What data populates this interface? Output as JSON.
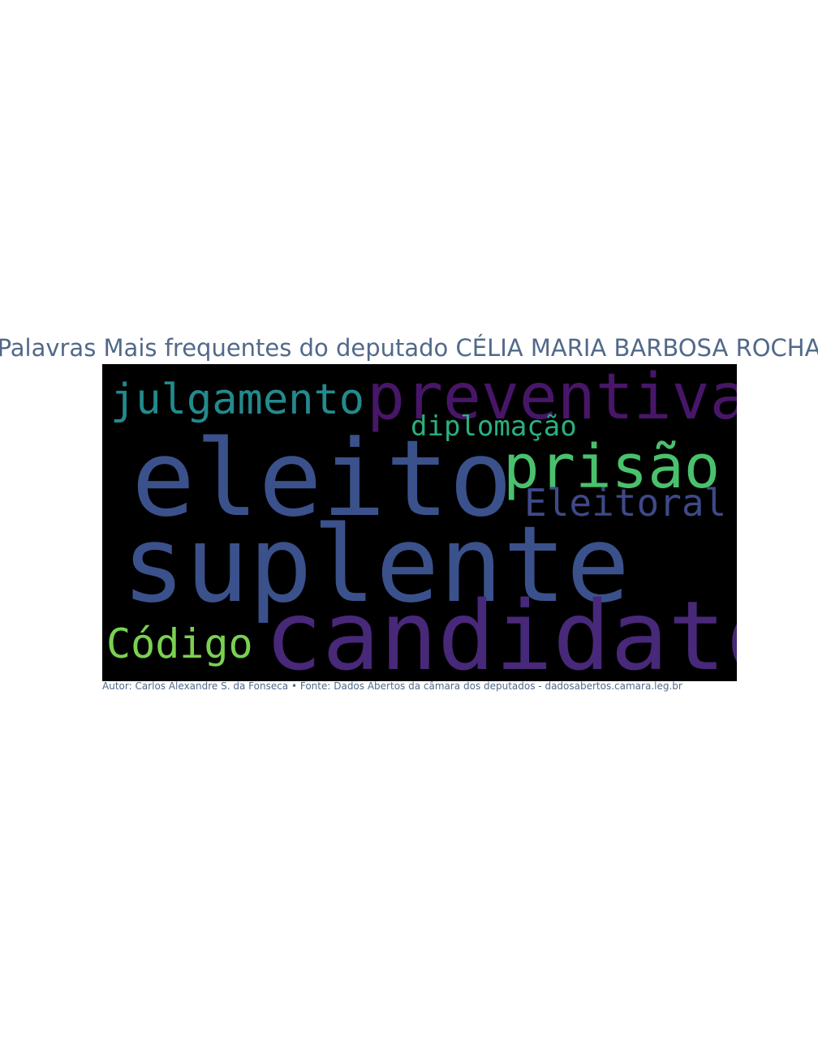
{
  "title": "Palavras Mais frequentes do deputado CÉLIA MARIA BARBOSA ROCHA",
  "cloud": {
    "background": "#000000",
    "words": [
      {
        "key": "suplente",
        "text": "suplente",
        "color": "#3b518b"
      },
      {
        "key": "candidato",
        "text": "candidato",
        "color": "#482878"
      },
      {
        "key": "eleito",
        "text": "eleito",
        "color": "#3b518b"
      },
      {
        "key": "preventiva",
        "text": "preventiva",
        "color": "#481668"
      },
      {
        "key": "prisao",
        "text": "prisão",
        "color": "#4ac16d"
      },
      {
        "key": "julgamento",
        "text": "julgamento",
        "color": "#238a8d"
      },
      {
        "key": "eleitoral",
        "text": "Eleitoral",
        "color": "#3e4989"
      },
      {
        "key": "codigo",
        "text": "Código",
        "color": "#7ad151"
      },
      {
        "key": "diplomacao",
        "text": "diplomação",
        "color": "#2ab07f"
      }
    ]
  },
  "credit": "Autor: Carlos Alexandre S. da Fonseca • Fonte: Dados Abertos da câmara dos deputados - dadosabertos.camara.leg.br",
  "colors": {
    "text": "#51698a"
  }
}
